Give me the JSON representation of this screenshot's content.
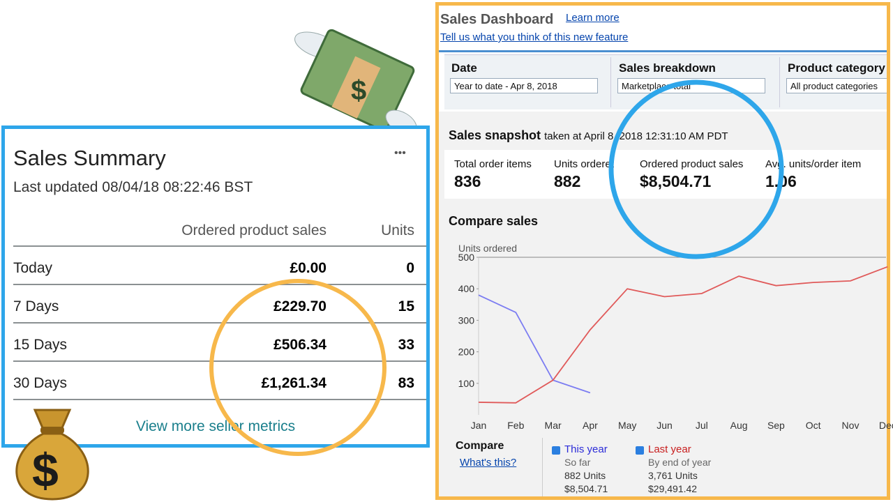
{
  "summary": {
    "title": "Sales Summary",
    "updated": "Last updated 08/04/18 08:22:46 BST",
    "more": "•••",
    "columns": [
      "Ordered product sales",
      "Units"
    ],
    "rows": [
      [
        "Today",
        "£0.00",
        "0"
      ],
      [
        "7 Days",
        "£229.70",
        "15"
      ],
      [
        "15 Days",
        "£506.34",
        "33"
      ],
      [
        "30 Days",
        "£1,261.34",
        "83"
      ]
    ],
    "link": "View more seller metrics"
  },
  "dashboard": {
    "title": "Sales Dashboard",
    "learn_more": "Learn more",
    "feedback": "Tell us what you think of this new feature",
    "filters": [
      {
        "label": "Date",
        "value": "Year to date - Apr 8, 2018"
      },
      {
        "label": "Sales breakdown",
        "value": "Marketplace total"
      },
      {
        "label": "Product category",
        "value": "All product categories"
      }
    ],
    "snapshot": {
      "title": "Sales snapshot",
      "taken": "taken at April 8, 2018 12:31:10 AM PDT",
      "metrics": [
        {
          "label": "Total order items",
          "value": "836"
        },
        {
          "label": "Units ordered",
          "value": "882"
        },
        {
          "label": "Ordered product sales",
          "value": "$8,504.71"
        },
        {
          "label": "Avg. units/order item",
          "value": "1.06"
        }
      ]
    },
    "chart": {
      "type": "line",
      "title": "Compare sales",
      "y_label": "Units ordered",
      "categories": [
        "Jan",
        "Feb",
        "Mar",
        "Apr",
        "May",
        "Jun",
        "Jul",
        "Aug",
        "Sep",
        "Oct",
        "Nov",
        "Dec"
      ],
      "ylim": [
        0,
        500
      ],
      "yticks": [
        100,
        200,
        300,
        400,
        500
      ],
      "series": [
        {
          "name": "This year",
          "color": "#7b7cf2",
          "values": [
            380,
            325,
            110,
            70,
            null,
            null,
            null,
            null,
            null,
            null,
            null,
            null
          ]
        },
        {
          "name": "Last year",
          "color": "#e05a5a",
          "values": [
            40,
            38,
            110,
            270,
            400,
            375,
            385,
            440,
            410,
            420,
            425,
            470
          ]
        }
      ]
    },
    "compare": {
      "title": "Compare",
      "whats_this": "What's this?",
      "legend": [
        {
          "sub": "So far",
          "units": "882 Units",
          "sales": "$8,504.71"
        },
        {
          "sub": "By end of year",
          "units": "3,761 Units",
          "sales": "$29,491.42"
        }
      ]
    }
  }
}
